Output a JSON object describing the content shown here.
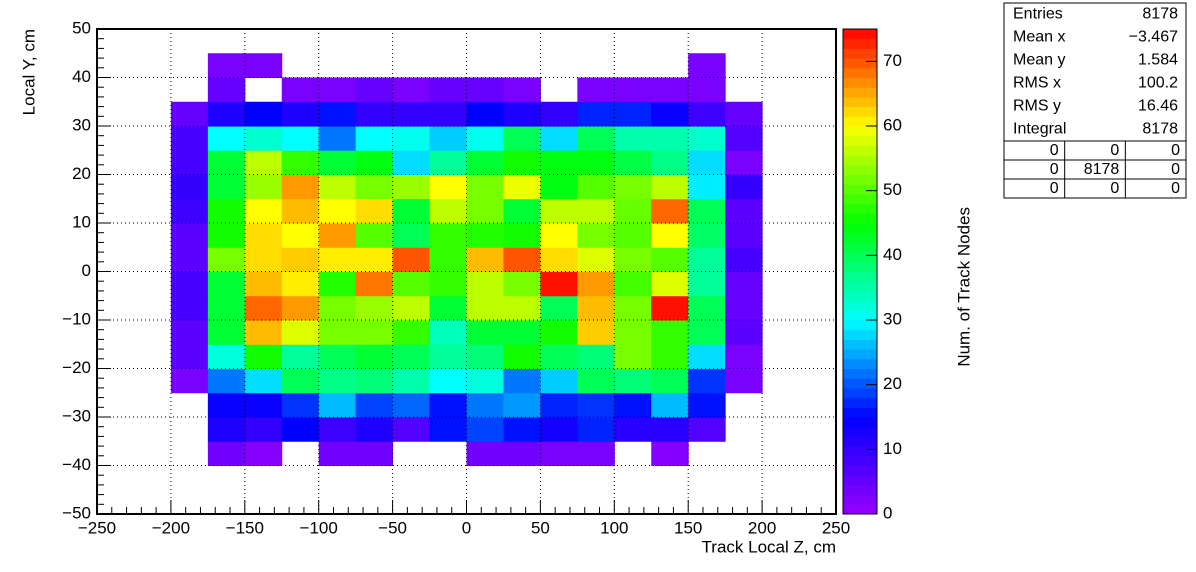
{
  "chart_data": {
    "type": "heatmap",
    "xlabel": "Track Local Z, cm",
    "ylabel": "Local Y, cm",
    "zlabel": "Num. of Track Nodes",
    "xlim": [
      -250,
      250
    ],
    "ylim": [
      -50,
      50
    ],
    "zlim": [
      0,
      75
    ],
    "xticks": [
      {
        "value": -250,
        "label": "−250"
      },
      {
        "value": -200,
        "label": "−200"
      },
      {
        "value": -150,
        "label": "−150"
      },
      {
        "value": -100,
        "label": "−100"
      },
      {
        "value": -50,
        "label": "−50"
      },
      0,
      50,
      100,
      150,
      200,
      250
    ],
    "yticks": [
      {
        "value": -50,
        "label": "−50"
      },
      {
        "value": -40,
        "label": "−40"
      },
      {
        "value": -30,
        "label": "−30"
      },
      {
        "value": -20,
        "label": "−20"
      },
      {
        "value": -10,
        "label": "−10"
      },
      0,
      10,
      20,
      30,
      40,
      50
    ],
    "zticks": [
      0,
      10,
      20,
      30,
      40,
      50,
      60,
      70
    ],
    "grid": true,
    "colorscale": [
      "#9900ff",
      "#0000ff",
      "#00ffff",
      "#00ff00",
      "#ffff00",
      "#ff0000"
    ],
    "xbins": [
      -200,
      -175,
      -150,
      -125,
      -100,
      -75,
      -50,
      -25,
      0,
      25,
      50,
      75,
      100,
      125,
      150,
      175,
      200
    ],
    "ybins": [
      -40,
      -35,
      -30,
      -25,
      -20,
      -15,
      -10,
      -5,
      0,
      5,
      10,
      15,
      20,
      25,
      30,
      35,
      40,
      45
    ],
    "z": [
      [
        0,
        4,
        2,
        0,
        4,
        4,
        0,
        0,
        4,
        4,
        3,
        3,
        0,
        2,
        0,
        0
      ],
      [
        0,
        12,
        10,
        15,
        9,
        12,
        7,
        16,
        19,
        16,
        13,
        17,
        11,
        11,
        7,
        0
      ],
      [
        0,
        14,
        14,
        18,
        26,
        19,
        21,
        16,
        22,
        24,
        17,
        18,
        16,
        26,
        16,
        0
      ],
      [
        3,
        22,
        28,
        40,
        37,
        38,
        35,
        30,
        32,
        22,
        27,
        40,
        38,
        40,
        18,
        3
      ],
      [
        6,
        32,
        46,
        36,
        40,
        42,
        40,
        36,
        38,
        46,
        40,
        38,
        52,
        48,
        28,
        3
      ],
      [
        6,
        42,
        64,
        58,
        52,
        52,
        48,
        34,
        42,
        42,
        46,
        63,
        52,
        48,
        40,
        6
      ],
      [
        8,
        42,
        69,
        66,
        52,
        54,
        56,
        42,
        56,
        56,
        40,
        64,
        52,
        74,
        40,
        5
      ],
      [
        8,
        42,
        64,
        61,
        47,
        68,
        50,
        48,
        56,
        52,
        74,
        66,
        49,
        58,
        36,
        5
      ],
      [
        6,
        52,
        62,
        63,
        61,
        61,
        70,
        48,
        64,
        70,
        62,
        58,
        52,
        50,
        36,
        8
      ],
      [
        6,
        46,
        62,
        60,
        66,
        50,
        40,
        48,
        47,
        46,
        60,
        52,
        50,
        60,
        39,
        6
      ],
      [
        9,
        46,
        60,
        64,
        60,
        62,
        42,
        56,
        52,
        42,
        56,
        56,
        51,
        69,
        40,
        6
      ],
      [
        10,
        42,
        54,
        66,
        56,
        52,
        54,
        60,
        52,
        59,
        44,
        50,
        52,
        56,
        29,
        10
      ],
      [
        8,
        42,
        56,
        48,
        42,
        44,
        28,
        36,
        42,
        46,
        44,
        44,
        41,
        37,
        28,
        3
      ],
      [
        8,
        30,
        33,
        30,
        22,
        30,
        31,
        27,
        31,
        40,
        28,
        40,
        35,
        35,
        33,
        7
      ],
      [
        5,
        12,
        15,
        12,
        16,
        10,
        10,
        10,
        15,
        12,
        10,
        17,
        17,
        14,
        9,
        5
      ],
      [
        0,
        5,
        0,
        3,
        3,
        5,
        3,
        5,
        5,
        3,
        0,
        3,
        3,
        3,
        3,
        0
      ],
      [
        0,
        3,
        3,
        0,
        0,
        0,
        0,
        0,
        0,
        0,
        0,
        0,
        0,
        0,
        3,
        0
      ]
    ],
    "stats": {
      "rows": [
        {
          "label": "Entries",
          "value": "8178"
        },
        {
          "label": "Mean x",
          "value": "−3.467"
        },
        {
          "label": "Mean y",
          "value": "1.584"
        },
        {
          "label": "RMS x",
          "value": "100.2"
        },
        {
          "label": "RMS y",
          "value": "16.46"
        },
        {
          "label": "Integral",
          "value": "8178"
        }
      ],
      "grid": [
        [
          "0",
          "0",
          "0"
        ],
        [
          "0",
          "8178",
          "0"
        ],
        [
          "0",
          "0",
          "0"
        ]
      ]
    }
  }
}
